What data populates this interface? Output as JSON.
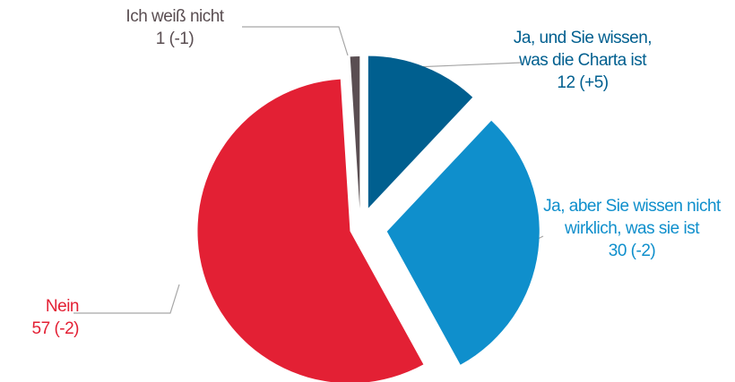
{
  "chart_data": {
    "type": "pie",
    "categories": [
      "Ja, und Sie wissen, was die Charta ist",
      "Ja, aber Sie wissen nicht wirklich, was sie ist",
      "Nein",
      "Ich weiß nicht"
    ],
    "values": [
      12,
      30,
      57,
      1
    ],
    "value_labels": [
      "12 (+5)",
      "30 (-2)",
      "57 (-2)",
      "1 (-1)"
    ],
    "colors": [
      "#005f8f",
      "#0f8fcc",
      "#e32034",
      "#5a4e52"
    ]
  }
}
